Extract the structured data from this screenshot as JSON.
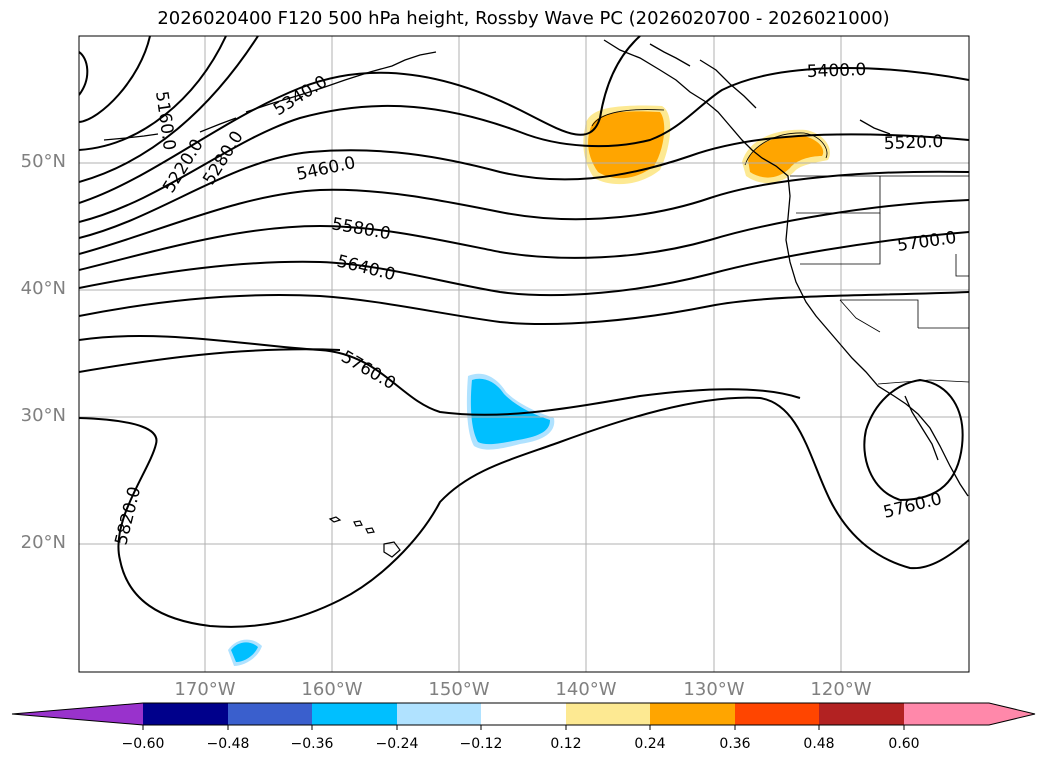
{
  "title": "2026020400 F120 500 hPa height, Rossby Wave PC (2026020700 - 2026021000)",
  "colors": {
    "contour": "#000000",
    "grid": "#b0b0b0",
    "coast": "#000000",
    "pos_light": "#fde992",
    "pos_mid": "#ffa500",
    "neg_mid": "#00bfff",
    "neg_light": "#b0e2ff"
  },
  "map": {
    "lat_labels": [
      "50°N",
      "40°N",
      "30°N",
      "20°N"
    ],
    "lon_labels": [
      "170°W",
      "160°W",
      "150°W",
      "140°W",
      "130°W",
      "120°W"
    ],
    "contour_labels": [
      "5160.0",
      "5220.0",
      "5280.0",
      "5340.0",
      "5400.0",
      "5460.0",
      "5520.0",
      "5580.0",
      "5640.0",
      "5700.0",
      "5760.0",
      "5760.0",
      "5820.0"
    ]
  },
  "colorbar": {
    "ticks": [
      "−0.60",
      "−0.48",
      "−0.36",
      "−0.24",
      "−0.12",
      "0.12",
      "0.24",
      "0.36",
      "0.48",
      "0.60"
    ],
    "segments": [
      "#9932cc",
      "#00008b",
      "#3a5fcd",
      "#00bfff",
      "#b0e2ff",
      "#ffffff",
      "#fde992",
      "#ffa500",
      "#ff4500",
      "#b22222",
      "#ff88aa",
      "#ff88aa"
    ]
  }
}
